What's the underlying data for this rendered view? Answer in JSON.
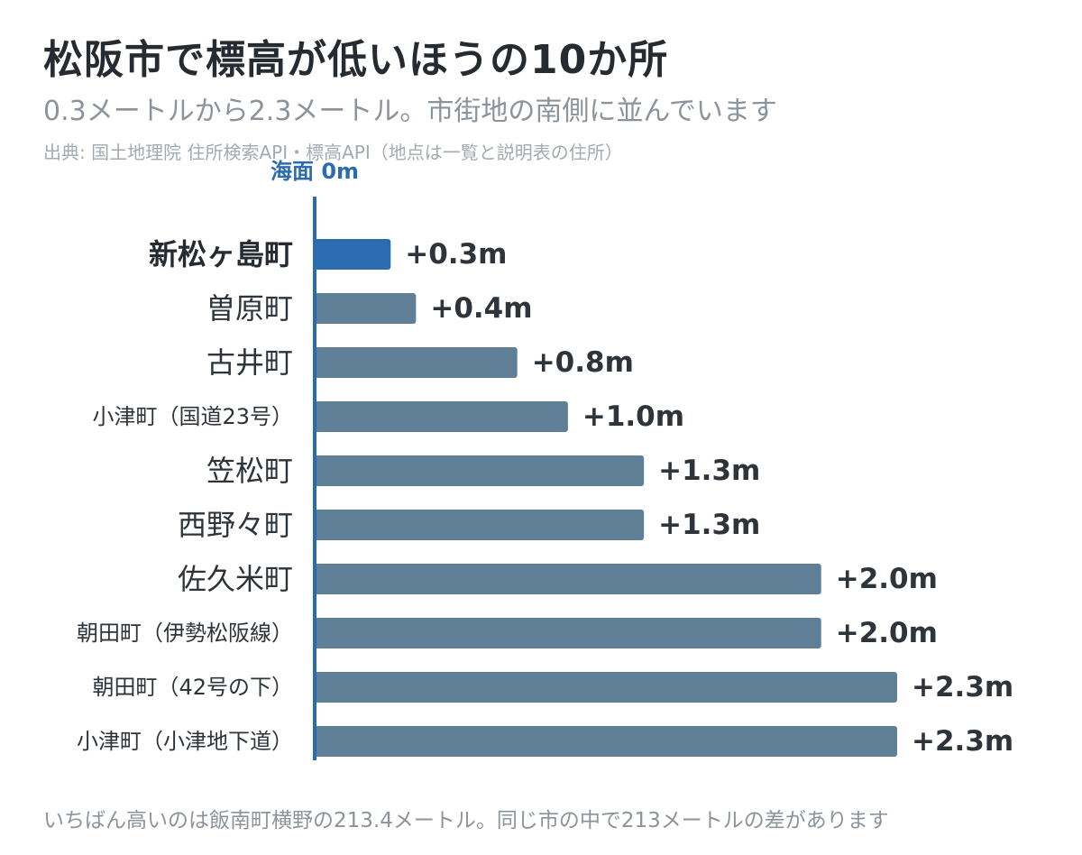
{
  "title": "松阪市で標高が低いほうの10か所",
  "subtitle": "0.3メートルから2.3メートル。市街地の南側に並んでいます",
  "source": "出典: 国土地理院 住所検索API・標高API（地点は一覧と説明表の住所）",
  "footnote": "いちばん高いのは飯南町横野の213.4メートル。同じ市の中で213メートルの差があります",
  "chart_data": {
    "type": "bar",
    "orientation": "horizontal",
    "baseline_label": "海面 0m",
    "categories": [
      "新松ヶ島町",
      "曽原町",
      "古井町",
      "小津町（国道23号）",
      "笠松町",
      "西野々町",
      "佐久米町",
      "朝田町（伊勢松阪線）",
      "朝田町（42号の下）",
      "小津町（小津地下道）"
    ],
    "values": [
      0.3,
      0.4,
      0.8,
      1.0,
      1.3,
      1.3,
      2.0,
      2.0,
      2.3,
      2.3
    ],
    "value_labels": [
      "+0.3m",
      "+0.4m",
      "+0.8m",
      "+1.0m",
      "+1.3m",
      "+1.3m",
      "+2.0m",
      "+2.0m",
      "+2.3m",
      "+2.3m"
    ],
    "highlight_index": 0,
    "xlim": [
      0,
      2.3
    ],
    "colors": {
      "highlight": "#2b6cb0",
      "bar": "#5e7f96",
      "baseline": "#2b6cb0",
      "label_highlight": "#262b31",
      "label": "#2f343a",
      "value_label": "#2f343a"
    }
  }
}
